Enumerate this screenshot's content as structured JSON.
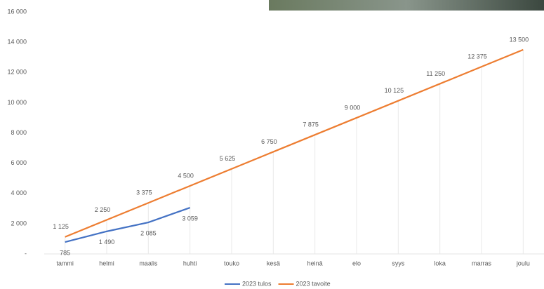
{
  "chart_data": {
    "type": "line",
    "categories": [
      "tammi",
      "helmi",
      "maalis",
      "huhti",
      "touko",
      "kesä",
      "heinä",
      "elo",
      "syys",
      "loka",
      "marras",
      "joulu"
    ],
    "series": [
      {
        "name": "2023 tulos",
        "color": "#4472c4",
        "values": [
          785,
          1490,
          2085,
          3059,
          null,
          null,
          null,
          null,
          null,
          null,
          null,
          null
        ],
        "value_labels": [
          "785",
          "1 490",
          "2 085",
          "3 059",
          null,
          null,
          null,
          null,
          null,
          null,
          null,
          null
        ]
      },
      {
        "name": "2023 tavoite",
        "color": "#ed7d31",
        "values": [
          1125,
          2250,
          3375,
          4500,
          5625,
          6750,
          7875,
          9000,
          10125,
          11250,
          12375,
          13500
        ],
        "value_labels": [
          "1 125",
          "2 250",
          "3 375",
          "4 500",
          "5 625",
          "6 750",
          "7 875",
          "9 000",
          "10 125",
          "11 250",
          "12 375",
          "13 500"
        ]
      }
    ],
    "ylim": [
      0,
      16000
    ],
    "yticks": [
      {
        "value": 0,
        "label": "-"
      },
      {
        "value": 2000,
        "label": "2 000"
      },
      {
        "value": 4000,
        "label": "4 000"
      },
      {
        "value": 6000,
        "label": "6 000"
      },
      {
        "value": 8000,
        "label": "8 000"
      },
      {
        "value": 10000,
        "label": "10 000"
      },
      {
        "value": 12000,
        "label": "12 000"
      },
      {
        "value": 14000,
        "label": "14 000"
      },
      {
        "value": 16000,
        "label": "16 000"
      }
    ],
    "legend": "bottom"
  }
}
